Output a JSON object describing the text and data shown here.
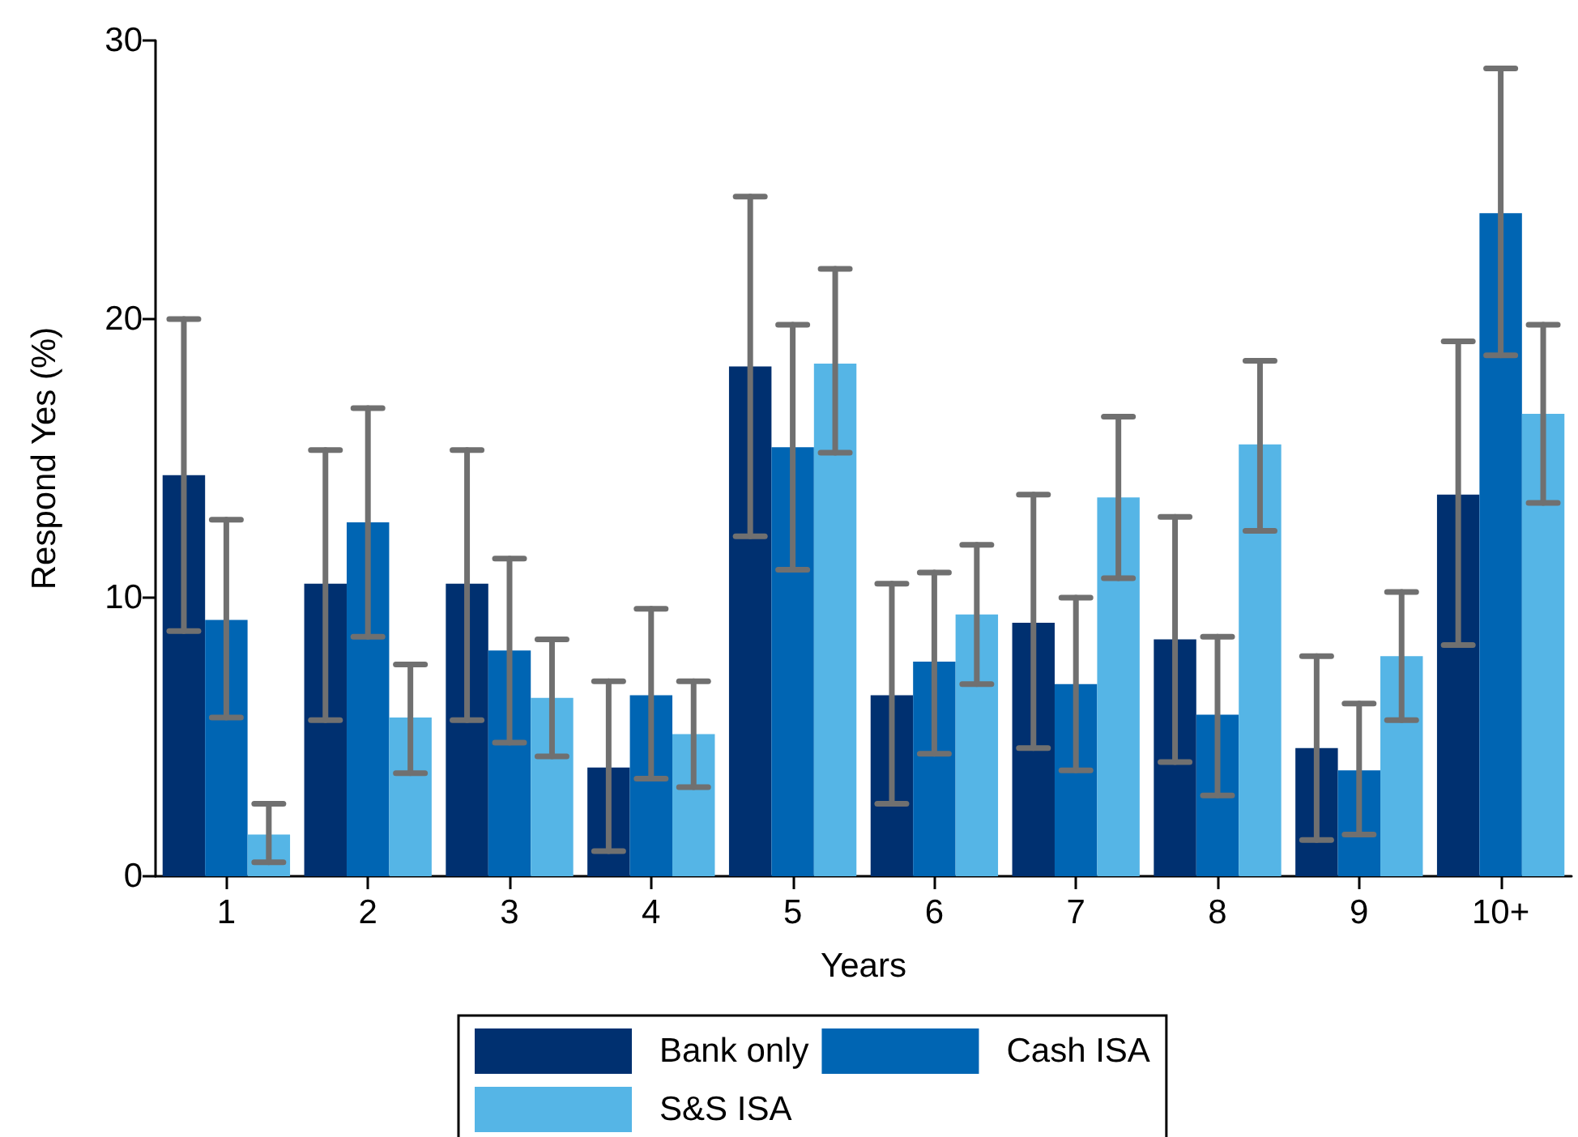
{
  "chart_data": {
    "type": "bar",
    "xlabel": "Years",
    "ylabel": "Respond Yes (%)",
    "categories": [
      "1",
      "2",
      "3",
      "4",
      "5",
      "6",
      "7",
      "8",
      "9",
      "10+"
    ],
    "ylim": [
      0,
      30
    ],
    "yticks": [
      0,
      10,
      20,
      30
    ],
    "grid": false,
    "legend": "bottom",
    "series": [
      {
        "name": "Bank only",
        "color": "#003070",
        "values": [
          14.4,
          10.5,
          10.5,
          3.9,
          18.3,
          6.5,
          9.1,
          8.5,
          4.6,
          13.7
        ],
        "errors": [
          [
            8.8,
            20.0
          ],
          [
            5.6,
            15.3
          ],
          [
            5.6,
            15.3
          ],
          [
            0.9,
            7.0
          ],
          [
            12.2,
            24.4
          ],
          [
            2.6,
            10.5
          ],
          [
            4.6,
            13.7
          ],
          [
            4.1,
            12.9
          ],
          [
            1.3,
            7.9
          ],
          [
            8.3,
            19.2
          ]
        ]
      },
      {
        "name": "Cash ISA",
        "color": "#0065b3",
        "values": [
          9.2,
          12.7,
          8.1,
          6.5,
          15.4,
          7.7,
          6.9,
          5.8,
          3.8,
          23.8
        ],
        "errors": [
          [
            5.7,
            12.8
          ],
          [
            8.6,
            16.8
          ],
          [
            4.8,
            11.4
          ],
          [
            3.5,
            9.6
          ],
          [
            11.0,
            19.8
          ],
          [
            4.4,
            10.9
          ],
          [
            3.8,
            10.0
          ],
          [
            2.9,
            8.6
          ],
          [
            1.5,
            6.2
          ],
          [
            18.7,
            29.0
          ]
        ]
      },
      {
        "name": "S&S ISA",
        "color": "#55b5e6",
        "values": [
          1.5,
          5.7,
          6.4,
          5.1,
          18.4,
          9.4,
          13.6,
          15.5,
          7.9,
          16.6
        ],
        "errors": [
          [
            0.5,
            2.6
          ],
          [
            3.7,
            7.6
          ],
          [
            4.3,
            8.5
          ],
          [
            3.2,
            7.0
          ],
          [
            15.2,
            21.8
          ],
          [
            6.9,
            11.9
          ],
          [
            10.7,
            16.5
          ],
          [
            12.4,
            18.5
          ],
          [
            5.6,
            10.2
          ],
          [
            13.4,
            19.8
          ]
        ]
      }
    ]
  }
}
